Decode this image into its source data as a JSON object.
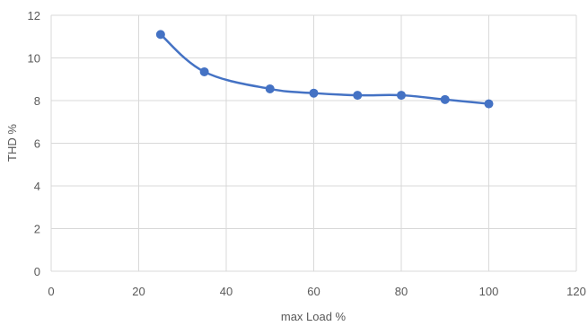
{
  "chart_data": {
    "type": "scatter",
    "title": "",
    "xlabel": "max Load %",
    "ylabel": "THD %",
    "xlim": [
      0,
      120
    ],
    "ylim": [
      0,
      12
    ],
    "x_ticks": [
      "0",
      "20",
      "40",
      "60",
      "80",
      "100",
      "120"
    ],
    "y_ticks": [
      "0",
      "2",
      "4",
      "6",
      "8",
      "10",
      "12"
    ],
    "grid": true,
    "legend": "none",
    "series": [
      {
        "x": [
          25,
          35,
          50,
          60,
          70,
          80,
          90,
          100
        ],
        "y": [
          11.1,
          9.35,
          8.55,
          8.35,
          8.25,
          8.25,
          8.05,
          7.85
        ],
        "color": "#4472c4",
        "markers": true,
        "line": "smoothed"
      }
    ],
    "colors": {
      "series": "#4472c4",
      "grid": "#d9d9d9",
      "text": "#595959"
    }
  }
}
